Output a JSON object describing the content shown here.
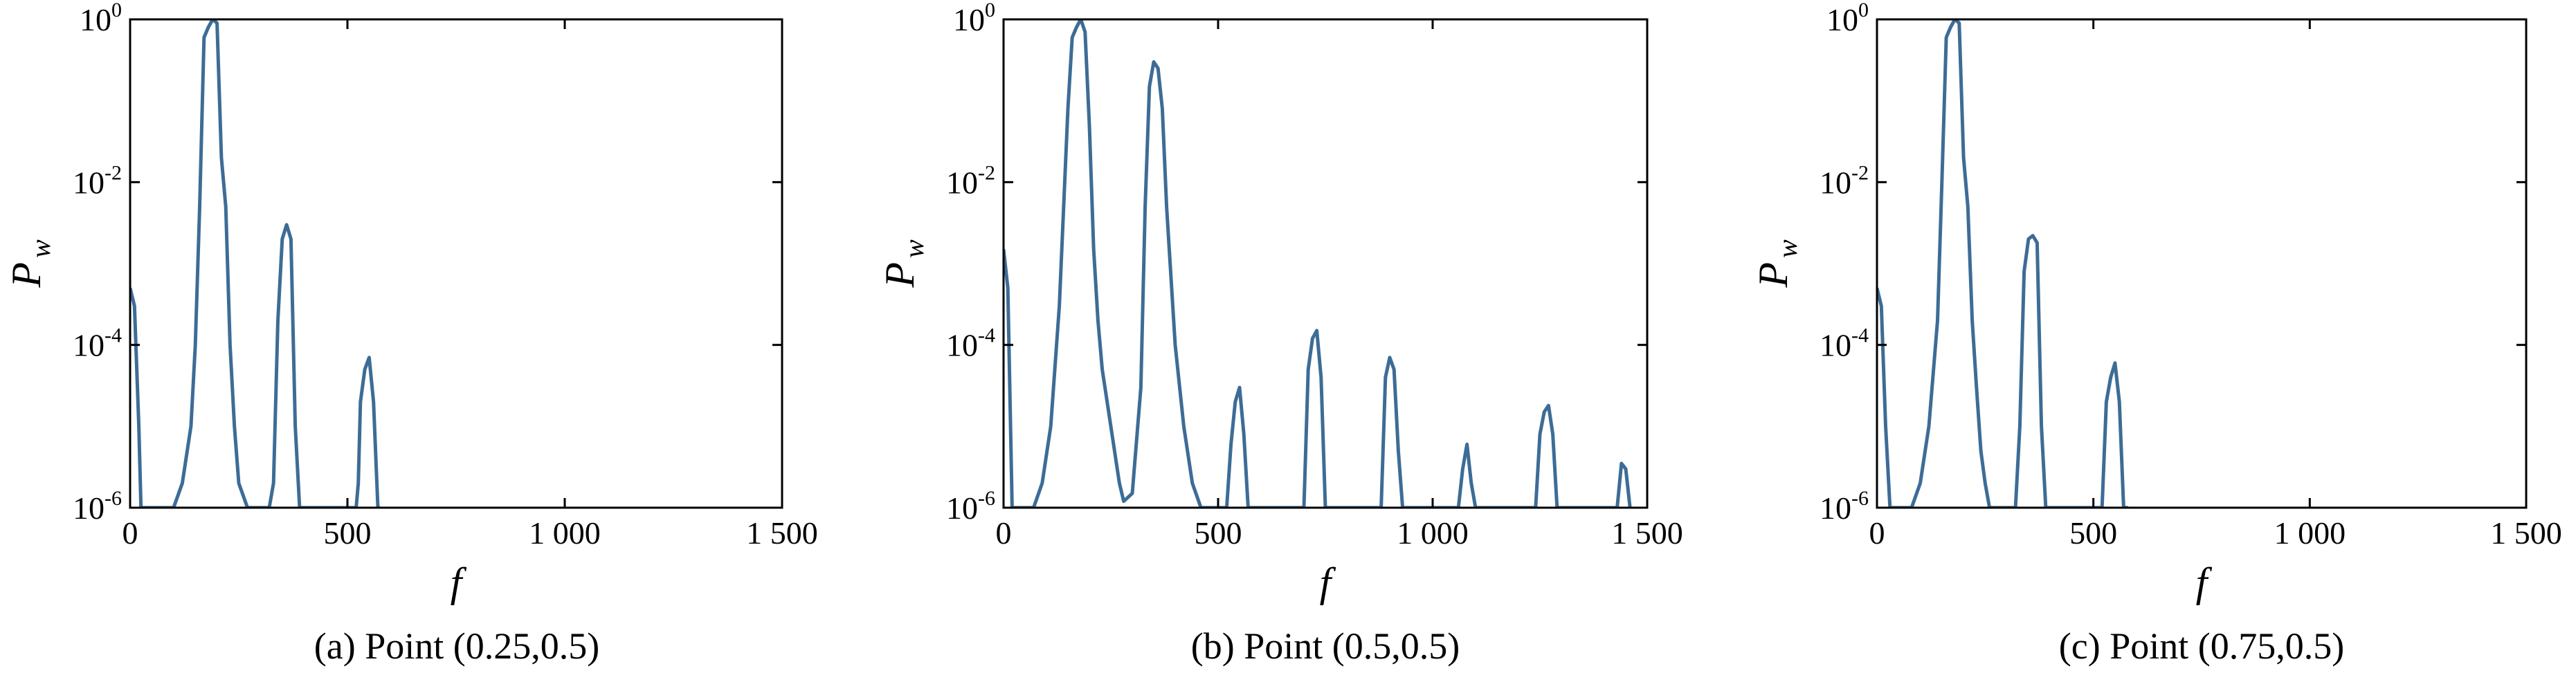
{
  "chart_data": [
    {
      "type": "line",
      "caption": "(a) Point (0.25,0.5)",
      "xlabel": "f",
      "ylabel": {
        "base": "P",
        "sub": "w"
      },
      "xlim": [
        0,
        1500
      ],
      "ylim": [
        1e-06,
        1
      ],
      "yscale": "log",
      "xticks": [
        0,
        500,
        1000,
        1500
      ],
      "xtick_labels": [
        "0",
        "500",
        "1 000",
        "1 500"
      ],
      "yticks": [
        1e-06,
        0.0001,
        0.01,
        1
      ],
      "ytick_labels": [
        {
          "base": "10",
          "exp": "-6"
        },
        {
          "base": "10",
          "exp": "-4"
        },
        {
          "base": "10",
          "exp": "-2"
        },
        {
          "base": "10",
          "exp": "0"
        }
      ],
      "grid": false,
      "line_color": "#3d6c96",
      "series": [
        {
          "x": [
            0,
            10,
            20,
            25,
            100,
            120,
            140,
            150,
            160,
            170,
            180,
            190,
            200,
            210,
            220,
            230,
            240,
            250,
            270,
            300,
            320,
            330,
            340,
            350,
            360,
            370,
            380,
            390,
            400,
            500,
            520,
            525,
            530,
            540,
            550,
            560,
            570,
            575
          ],
          "y": [
            0.0005,
            0.0003,
            1e-05,
            1e-06,
            1e-06,
            2e-06,
            1e-05,
            0.0001,
            0.005,
            0.6,
            0.8,
            1,
            0.9,
            0.02,
            0.005,
            0.0001,
            1e-05,
            2e-06,
            1e-06,
            1e-06,
            1e-06,
            2e-06,
            0.0002,
            0.002,
            0.003,
            0.002,
            1e-05,
            1e-06,
            1e-06,
            1e-06,
            1e-06,
            2e-06,
            2e-05,
            5e-05,
            7e-05,
            2e-05,
            1e-06,
            1e-06
          ]
        }
      ]
    },
    {
      "type": "line",
      "caption": "(b) Point (0.5,0.5)",
      "xlabel": "f",
      "ylabel": {
        "base": "P",
        "sub": "w"
      },
      "xlim": [
        0,
        1500
      ],
      "ylim": [
        1e-06,
        1
      ],
      "yscale": "log",
      "xticks": [
        0,
        500,
        1000,
        1500
      ],
      "xtick_labels": [
        "0",
        "500",
        "1 000",
        "1 500"
      ],
      "yticks": [
        1e-06,
        0.0001,
        0.01,
        1
      ],
      "ytick_labels": [
        {
          "base": "10",
          "exp": "-6"
        },
        {
          "base": "10",
          "exp": "-4"
        },
        {
          "base": "10",
          "exp": "-2"
        },
        {
          "base": "10",
          "exp": "0"
        }
      ],
      "grid": false,
      "line_color": "#3d6c96",
      "series": [
        {
          "x": [
            0,
            10,
            20,
            70,
            90,
            110,
            130,
            150,
            160,
            170,
            180,
            190,
            200,
            210,
            220,
            230,
            250,
            270,
            280,
            300,
            320,
            330,
            340,
            350,
            360,
            370,
            380,
            400,
            420,
            440,
            460,
            520,
            530,
            540,
            550,
            560,
            570,
            700,
            710,
            720,
            730,
            740,
            750,
            880,
            890,
            900,
            910,
            920,
            930,
            1060,
            1070,
            1080,
            1090,
            1100,
            1240,
            1250,
            1260,
            1270,
            1280,
            1290,
            1430,
            1440,
            1450,
            1460
          ],
          "y": [
            0.0015,
            0.0005,
            1e-06,
            1e-06,
            2e-06,
            1e-05,
            0.0003,
            0.08,
            0.6,
            0.8,
            1,
            0.7,
            0.05,
            0.0015,
            0.0002,
            5e-05,
            1e-05,
            2e-06,
            1.2e-06,
            1.5e-06,
            3e-05,
            0.005,
            0.15,
            0.3,
            0.25,
            0.08,
            0.005,
            0.0001,
            1e-05,
            2e-06,
            1e-06,
            1e-06,
            6e-06,
            2e-05,
            3e-05,
            8e-06,
            1e-06,
            1e-06,
            5e-05,
            0.00012,
            0.00015,
            4e-05,
            1e-06,
            1e-06,
            4e-05,
            7e-05,
            5e-05,
            5e-06,
            1e-06,
            1e-06,
            3e-06,
            6e-06,
            2e-06,
            1e-06,
            1e-06,
            8e-06,
            1.5e-05,
            1.8e-05,
            8e-06,
            1e-06,
            1e-06,
            3.5e-06,
            3e-06,
            1e-06
          ]
        }
      ]
    },
    {
      "type": "line",
      "caption": "(c) Point (0.75,0.5)",
      "xlabel": "f",
      "ylabel": {
        "base": "P",
        "sub": "w"
      },
      "xlim": [
        0,
        1500
      ],
      "ylim": [
        1e-06,
        1
      ],
      "yscale": "log",
      "xticks": [
        0,
        500,
        1000,
        1500
      ],
      "xtick_labels": [
        "0",
        "500",
        "1 000",
        "1 500"
      ],
      "yticks": [
        1e-06,
        0.0001,
        0.01,
        1
      ],
      "ytick_labels": [
        {
          "base": "10",
          "exp": "-6"
        },
        {
          "base": "10",
          "exp": "-4"
        },
        {
          "base": "10",
          "exp": "-2"
        },
        {
          "base": "10",
          "exp": "0"
        }
      ],
      "grid": false,
      "line_color": "#3d6c96",
      "series": [
        {
          "x": [
            0,
            10,
            20,
            30,
            80,
            100,
            120,
            140,
            150,
            160,
            170,
            180,
            190,
            200,
            210,
            220,
            230,
            240,
            250,
            260,
            280,
            300,
            320,
            330,
            340,
            350,
            360,
            370,
            380,
            390,
            400,
            500,
            520,
            530,
            540,
            550,
            560,
            570,
            580
          ],
          "y": [
            0.0005,
            0.0003,
            1e-05,
            1e-06,
            1e-06,
            2e-06,
            1e-05,
            0.0002,
            0.01,
            0.6,
            0.8,
            1,
            0.9,
            0.02,
            0.005,
            0.0002,
            3e-05,
            5e-06,
            2e-06,
            1e-06,
            1e-06,
            1e-06,
            1e-06,
            1e-05,
            0.0008,
            0.002,
            0.0022,
            0.0018,
            1e-05,
            1e-06,
            1e-06,
            1e-06,
            1e-06,
            2e-05,
            4e-05,
            6e-05,
            2e-05,
            1e-06,
            1e-06
          ]
        }
      ]
    }
  ]
}
